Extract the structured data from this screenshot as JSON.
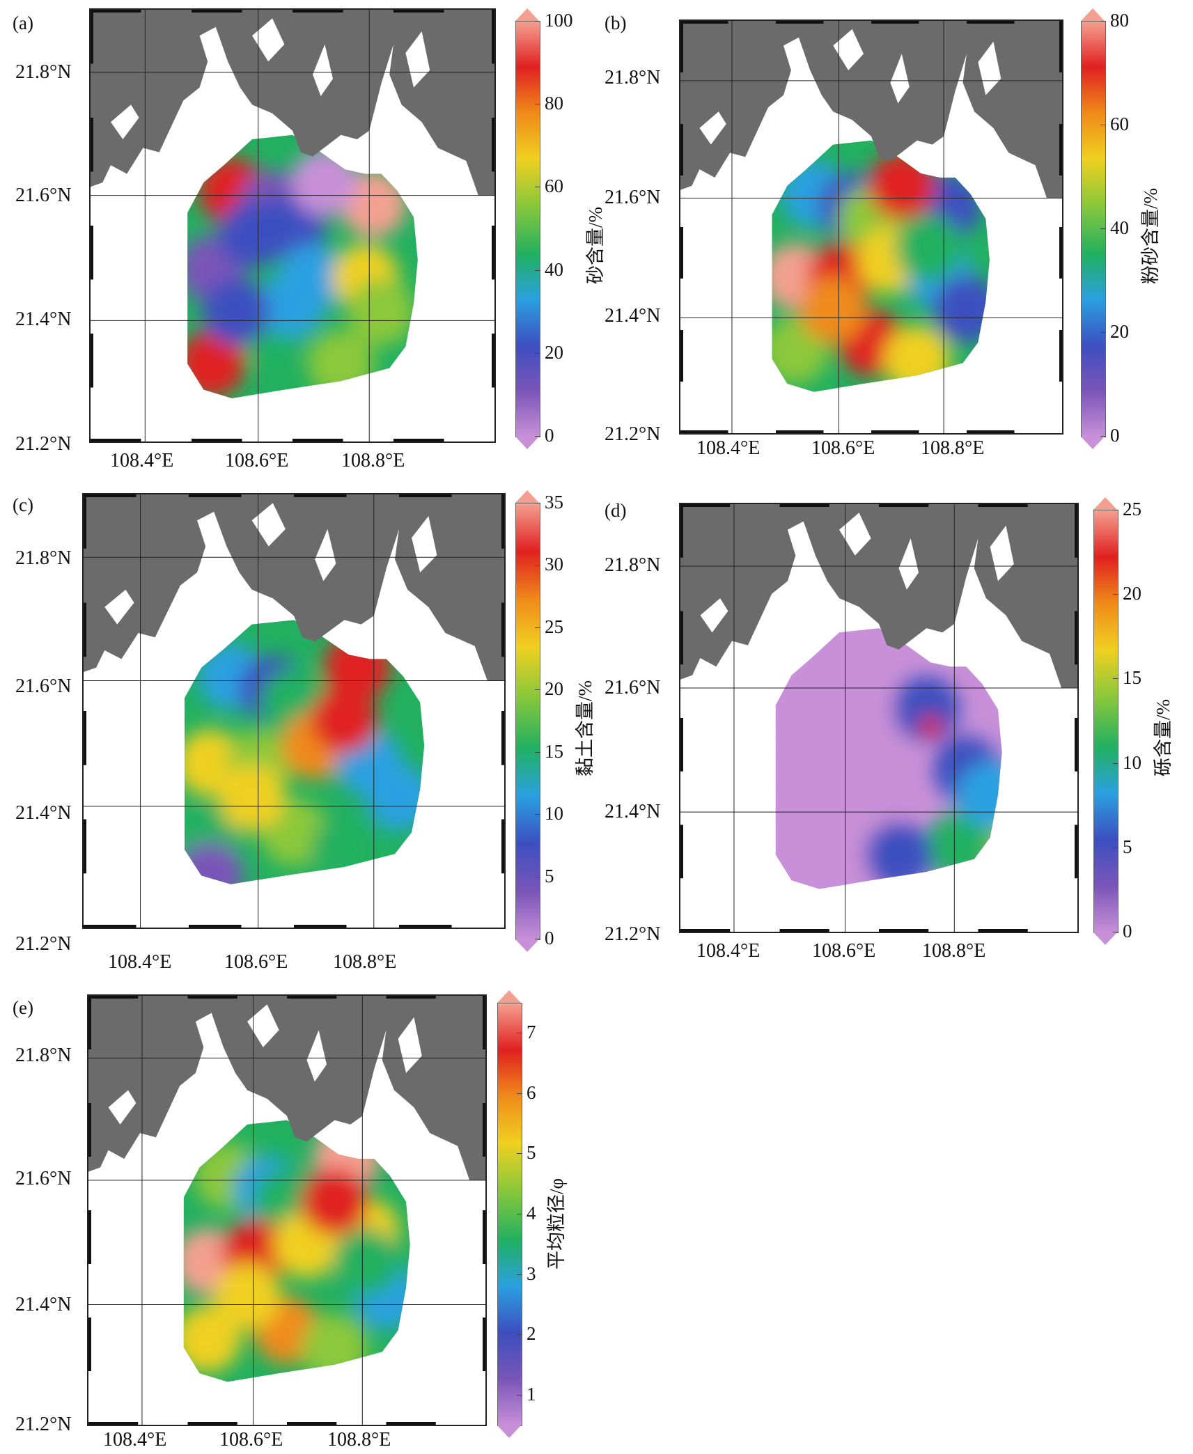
{
  "panels": [
    {
      "id": "a",
      "label": "(a)",
      "colorbar": {
        "title": "砂含量/%",
        "ticks": [
          "0",
          "20",
          "40",
          "60",
          "80",
          "100"
        ],
        "min": 0,
        "max": 100
      }
    },
    {
      "id": "b",
      "label": "(b)",
      "colorbar": {
        "title": "粉砂含量/%",
        "ticks": [
          "0",
          "20",
          "40",
          "60",
          "80"
        ],
        "min": 0,
        "max": 80
      }
    },
    {
      "id": "c",
      "label": "(c)",
      "colorbar": {
        "title": "黏土含量/%",
        "ticks": [
          "0",
          "5",
          "10",
          "15",
          "20",
          "25",
          "30",
          "35"
        ],
        "min": 0,
        "max": 35
      }
    },
    {
      "id": "d",
      "label": "(d)",
      "colorbar": {
        "title": "砾含量/%",
        "ticks": [
          "0",
          "5",
          "10",
          "15",
          "20",
          "25"
        ],
        "min": 0,
        "max": 25
      }
    },
    {
      "id": "e",
      "label": "(e)",
      "colorbar": {
        "title": "平均粒径/φ",
        "ticks": [
          "1",
          "2",
          "3",
          "4",
          "5",
          "6",
          "7"
        ],
        "min": 0.5,
        "max": 7.5
      }
    }
  ],
  "axes": {
    "lat_labels": [
      "21.2°N",
      "21.4°N",
      "21.6°N",
      "21.8°N"
    ],
    "lon_labels": [
      "108.4°E",
      "108.6°E",
      "108.8°E"
    ]
  },
  "colors": {
    "land": "#6b6b6b",
    "scale": [
      "#c890d8",
      "#7a55b8",
      "#3c4fc0",
      "#2aa0e0",
      "#22b060",
      "#8cc83a",
      "#f0d020",
      "#f08a1a",
      "#e02020",
      "#f4a090"
    ]
  }
}
